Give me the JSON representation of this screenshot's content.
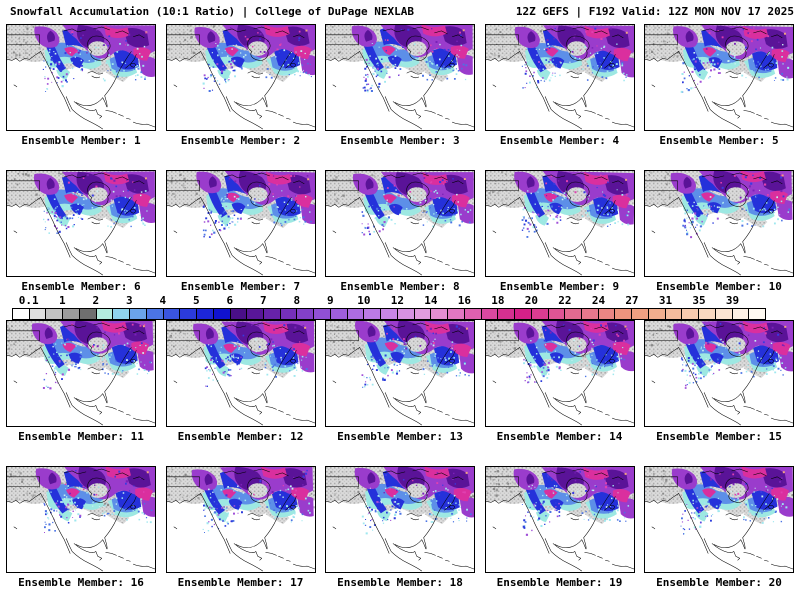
{
  "header": {
    "title_left": "Snowfall Accumulation (10:1 Ratio) | College of DuPage NEXLAB",
    "title_right": "12Z GEFS | F192 Valid: 12Z MON NOV 17 2025"
  },
  "product": {
    "parameter": "Snowfall Accumulation (10:1 Ratio)",
    "source": "College of DuPage NEXLAB",
    "model_run": "12Z GEFS",
    "forecast_hour": "F192",
    "valid_time": "12Z MON NOV 17 2025"
  },
  "colorbar": {
    "tick_labels": [
      "0.1",
      "1",
      "2",
      "3",
      "4",
      "5",
      "6",
      "7",
      "8",
      "9",
      "10",
      "12",
      "14",
      "16",
      "18",
      "20",
      "22",
      "24",
      "27",
      "31",
      "35",
      "39"
    ],
    "cell_colors": [
      "#ffffff",
      "#dedede",
      "#c2c2c2",
      "#9c9c9c",
      "#6f6f6f",
      "#b4ecdf",
      "#8fd4ee",
      "#6ba4ea",
      "#4b74e4",
      "#3a55e0",
      "#2b3bdc",
      "#1d26d8",
      "#1012d0",
      "#4a0f88",
      "#591699",
      "#6722aa",
      "#7530ba",
      "#8340c8",
      "#9150d4",
      "#9f5edc",
      "#ad6ce2",
      "#bb7ae6",
      "#c986e6",
      "#d792e2",
      "#e19cde",
      "#e48ed2",
      "#e277c2",
      "#de60b0",
      "#da48a0",
      "#d63090",
      "#d62088",
      "#da3c90",
      "#de5494",
      "#e26a90",
      "#e6788c",
      "#ea8684",
      "#ed937e",
      "#f0a082",
      "#f2ae8e",
      "#f5bc9e",
      "#f7caae",
      "#f9d8c0",
      "#fbe4d2",
      "#fdf0e4",
      "#fffaf2"
    ]
  },
  "panels": [
    {
      "member": 1,
      "label": "Ensemble Member: 1"
    },
    {
      "member": 2,
      "label": "Ensemble Member: 2"
    },
    {
      "member": 3,
      "label": "Ensemble Member: 3"
    },
    {
      "member": 4,
      "label": "Ensemble Member: 4"
    },
    {
      "member": 5,
      "label": "Ensemble Member: 5"
    },
    {
      "member": 6,
      "label": "Ensemble Member: 6"
    },
    {
      "member": 7,
      "label": "Ensemble Member: 7"
    },
    {
      "member": 8,
      "label": "Ensemble Member: 8"
    },
    {
      "member": 9,
      "label": "Ensemble Member: 9"
    },
    {
      "member": 10,
      "label": "Ensemble Member: 10"
    },
    {
      "member": 11,
      "label": "Ensemble Member: 11"
    },
    {
      "member": 12,
      "label": "Ensemble Member: 12"
    },
    {
      "member": 13,
      "label": "Ensemble Member: 13"
    },
    {
      "member": 14,
      "label": "Ensemble Member: 14"
    },
    {
      "member": 15,
      "label": "Ensemble Member: 15"
    },
    {
      "member": 16,
      "label": "Ensemble Member: 16"
    },
    {
      "member": 17,
      "label": "Ensemble Member: 17"
    },
    {
      "member": 18,
      "label": "Ensemble Member: 18"
    },
    {
      "member": 19,
      "label": "Ensemble Member: 19"
    },
    {
      "member": 20,
      "label": "Ensemble Member: 20"
    }
  ],
  "chart_data": {
    "type": "heatmap",
    "title": "Snowfall Accumulation (10:1 Ratio)",
    "model_run": "12Z GEFS",
    "forecast_hour": "F192",
    "valid": "12Z MON NOV 17 2025",
    "panel_grid": {
      "rows": 4,
      "cols": 5
    },
    "ensemble_members": [
      1,
      2,
      3,
      4,
      5,
      6,
      7,
      8,
      9,
      10,
      11,
      12,
      13,
      14,
      15,
      16,
      17,
      18,
      19,
      20
    ],
    "colorbar_ticks": [
      0.1,
      1,
      2,
      3,
      4,
      5,
      6,
      7,
      8,
      9,
      10,
      12,
      14,
      16,
      18,
      20,
      22,
      24,
      27,
      31,
      35,
      39
    ],
    "legend_position": "horizontal, centered between panel rows 2 and 3"
  }
}
